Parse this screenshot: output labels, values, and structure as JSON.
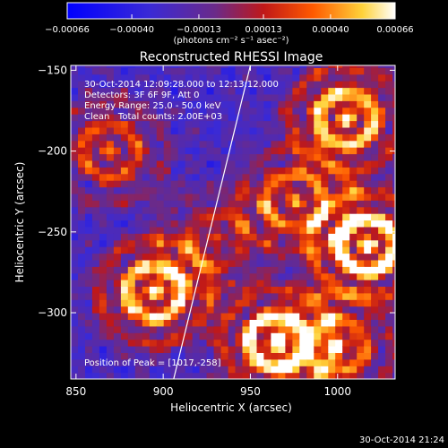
{
  "chart_data": {
    "type": "heatmap",
    "title": "Reconstructed RHESSI Image",
    "xlabel": "Heliocentric X (arcsec)",
    "ylabel": "Heliocentric Y (arcsec)",
    "xlim": [
      847,
      1033
    ],
    "ylim": [
      -341,
      -147
    ],
    "xticks": [
      850,
      900,
      950,
      1000
    ],
    "xtick_labels": [
      "850",
      "900",
      "950",
      "1000"
    ],
    "yticks": [
      -150,
      -200,
      -250,
      -300
    ],
    "ytick_labels": [
      "−150",
      "−200",
      "−250",
      "−300"
    ],
    "colorbar": {
      "colormap": "hot-blue (blue → purple → red → orange → yellow → white)",
      "range": [
        -0.00066,
        0.00066
      ],
      "ticks": [
        -0.00066,
        -0.0004,
        -0.00013,
        0.00013,
        0.0004,
        0.00066
      ],
      "tick_labels": [
        "−0.00066",
        "−0.00040",
        "−0.00013",
        "0.00013",
        "0.00040",
        "0.00066"
      ],
      "units": "(photons cm⁻² s⁻¹ asec⁻²)"
    },
    "annotations": [
      "30-Oct-2014 12:09:28.000 to 12:13:12.000",
      "Detectors: 3F 6F 9F, Att 0",
      "Energy Range: 25.0 - 50.0 keV",
      "Clean   Total counts: 2.00E+03",
      "Position of Peak = [1017,-258]"
    ],
    "limb_line": [
      [
        906,
        -341
      ],
      [
        950,
        -147
      ]
    ],
    "bright_regions": [
      {
        "x": 1017,
        "y": -258,
        "intensity": 1.0
      },
      {
        "x": 895,
        "y": -287,
        "intensity": 0.85
      },
      {
        "x": 965,
        "y": -318,
        "intensity": 0.9
      },
      {
        "x": 1005,
        "y": -180,
        "intensity": 0.85
      },
      {
        "x": 975,
        "y": -230,
        "intensity": 0.6
      },
      {
        "x": 870,
        "y": -200,
        "intensity": 0.5
      },
      {
        "x": 1000,
        "y": -320,
        "intensity": 0.6
      },
      {
        "x": 930,
        "y": -255,
        "intensity": 0.4
      }
    ],
    "grid": false
  },
  "footer_timestamp": "30-Oct-2014 21:24",
  "colors": {
    "background": "#000000",
    "axes": "#ffffff",
    "limb": "#ffffff"
  }
}
